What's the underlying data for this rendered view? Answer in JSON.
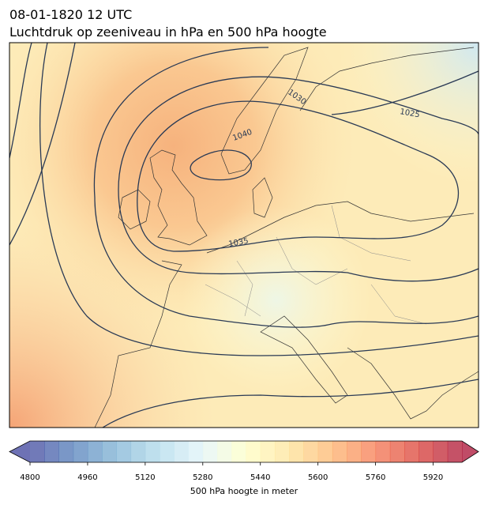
{
  "header": {
    "title": "08-01-1820 12 UTC",
    "subtitle": "Luchtdruk op zeeniveau in hPa en 500 hPa hoogte"
  },
  "map": {
    "contour_labels": [
      "1030",
      "1025",
      "1040",
      "1035"
    ]
  },
  "colorbar": {
    "lim": [
      4800,
      6000
    ],
    "step": 40,
    "ticks": [
      4800,
      4960,
      5120,
      5280,
      5440,
      5600,
      5760,
      5920
    ],
    "label": "500 hPa hoogte in meter",
    "colors": [
      "#313695",
      "#4575b4",
      "#74add1",
      "#abd9e9",
      "#e0f3f8",
      "#ffffbf",
      "#fee090",
      "#fdae61",
      "#f46d43",
      "#d73027",
      "#a50026"
    ],
    "opacity": 0.7
  }
}
